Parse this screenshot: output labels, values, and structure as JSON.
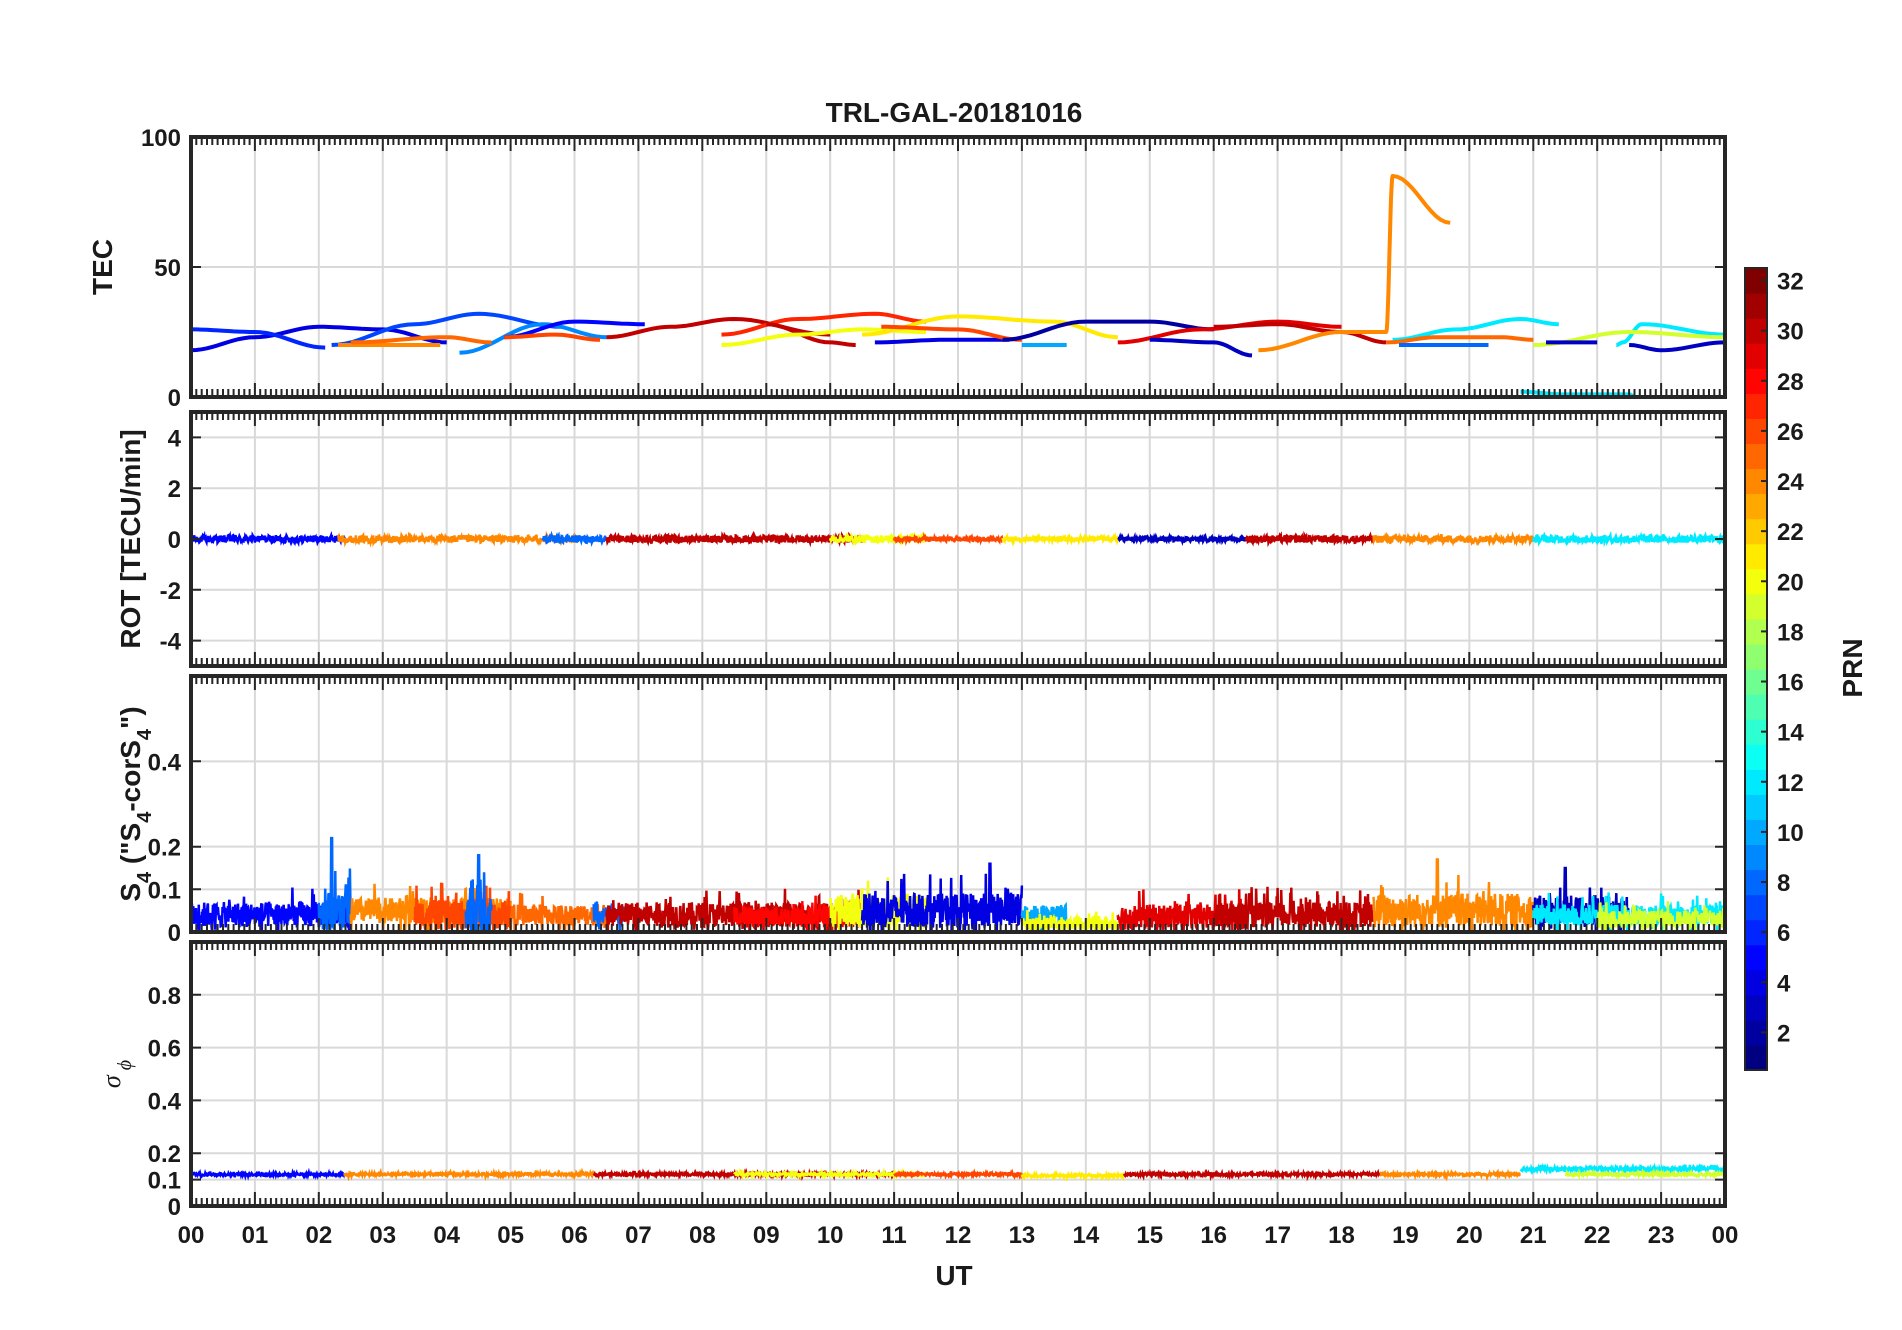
{
  "chart_data": [
    {
      "type": "line",
      "panel": "tec",
      "title": "TRL-GAL-20181016",
      "ylabel": "TEC",
      "ylim": [
        0,
        100
      ],
      "yticks": [
        0,
        50,
        100
      ],
      "ytick_labels": [
        "0",
        "50",
        "100"
      ],
      "grid": true,
      "series": [
        {
          "prn": 4,
          "x": [
            0.0,
            1.0,
            2.0,
            3.0,
            4.0
          ],
          "y": [
            18,
            23,
            27,
            26,
            21
          ]
        },
        {
          "prn": 6,
          "x": [
            0.0,
            1.0,
            2.1
          ],
          "y": [
            26,
            25,
            19
          ]
        },
        {
          "prn": 7,
          "x": [
            2.2,
            3.5,
            4.5,
            5.8
          ],
          "y": [
            20,
            28,
            32,
            27
          ]
        },
        {
          "prn": 9,
          "x": [
            4.2,
            5.5,
            6.5
          ],
          "y": [
            17,
            28,
            23
          ]
        },
        {
          "prn": 5,
          "x": [
            4.9,
            6.0,
            7.1
          ],
          "y": [
            23,
            29,
            28
          ]
        },
        {
          "prn": 24,
          "x": [
            2.3,
            3.2,
            3.9
          ],
          "y": [
            20,
            20,
            20
          ]
        },
        {
          "prn": 25,
          "x": [
            2.5,
            4.0,
            4.7
          ],
          "y": [
            21,
            23,
            21
          ]
        },
        {
          "prn": 26,
          "x": [
            4.9,
            5.7,
            6.4
          ],
          "y": [
            23,
            24,
            22
          ]
        },
        {
          "prn": 30,
          "x": [
            6.5,
            7.5,
            8.5,
            10.0
          ],
          "y": [
            23,
            27,
            30,
            24
          ]
        },
        {
          "prn": 27,
          "x": [
            8.3,
            9.5,
            10.7,
            11.5
          ],
          "y": [
            24,
            30,
            32,
            29
          ]
        },
        {
          "prn": 30,
          "x": [
            9.0,
            10.0,
            10.4
          ],
          "y": [
            28,
            21,
            20
          ]
        },
        {
          "prn": 20,
          "x": [
            8.3,
            9.5,
            10.5,
            11.5
          ],
          "y": [
            20,
            24,
            26,
            25
          ]
        },
        {
          "prn": 21,
          "x": [
            10.5,
            12.0,
            13.5,
            14.5
          ],
          "y": [
            24,
            31,
            29,
            23
          ]
        },
        {
          "prn": 4,
          "x": [
            10.7,
            11.8,
            12.8
          ],
          "y": [
            21,
            22,
            22
          ]
        },
        {
          "prn": 26,
          "x": [
            10.8,
            12.0,
            13.0
          ],
          "y": [
            27,
            26,
            22
          ]
        },
        {
          "prn": 2,
          "x": [
            12.7,
            14.0,
            15.0,
            16.0
          ],
          "y": [
            22,
            29,
            29,
            26
          ]
        },
        {
          "prn": 10,
          "x": [
            13.0,
            13.7
          ],
          "y": [
            20,
            20
          ]
        },
        {
          "prn": 29,
          "x": [
            14.5,
            15.8,
            17.0,
            18.0
          ],
          "y": [
            21,
            26,
            29,
            27
          ]
        },
        {
          "prn": 3,
          "x": [
            15.0,
            16.0,
            16.6
          ],
          "y": [
            22,
            21,
            16
          ]
        },
        {
          "prn": 30,
          "x": [
            16.0,
            17.0,
            18.0,
            18.7
          ],
          "y": [
            27,
            28,
            25,
            21
          ]
        },
        {
          "prn": 24,
          "x": [
            16.7,
            18.0,
            18.7,
            18.8,
            19.7
          ],
          "y": [
            18,
            25,
            25,
            85,
            67
          ]
        },
        {
          "prn": 12,
          "x": [
            18.8,
            19.8,
            20.8,
            21.4
          ],
          "y": [
            22,
            26,
            30,
            28
          ]
        },
        {
          "prn": 25,
          "x": [
            18.7,
            19.5,
            20.5,
            21.0
          ],
          "y": [
            21,
            23,
            23,
            22
          ]
        },
        {
          "prn": 8,
          "x": [
            18.9,
            20.3
          ],
          "y": [
            20,
            20
          ]
        },
        {
          "prn": 12,
          "x": [
            20.8,
            21.5,
            22.5,
            22.6
          ],
          "y": [
            2,
            1,
            1,
            0
          ]
        },
        {
          "prn": 12,
          "x": [
            22.3,
            22.4,
            22.7,
            24.0
          ],
          "y": [
            20,
            21,
            28,
            24
          ]
        },
        {
          "prn": 19,
          "x": [
            21.0,
            22.5,
            24.0
          ],
          "y": [
            20,
            25,
            23
          ]
        },
        {
          "prn": 3,
          "x": [
            21.2,
            22.0
          ],
          "y": [
            21,
            21
          ]
        },
        {
          "prn": 3,
          "x": [
            22.5,
            23.0,
            24.0
          ],
          "y": [
            20,
            18,
            21
          ]
        }
      ]
    },
    {
      "type": "line",
      "panel": "rot",
      "ylabel": "ROT [TECU/min]",
      "ylim": [
        -5,
        5
      ],
      "yticks": [
        -4,
        -2,
        0,
        2,
        4
      ],
      "ytick_labels": [
        "-4",
        "-2",
        "0",
        "2",
        "4"
      ],
      "grid": true,
      "segments": [
        {
          "prn": 5,
          "x0": 0.0,
          "x1": 2.4,
          "amp": 0.15
        },
        {
          "prn": 24,
          "x0": 2.3,
          "x1": 6.0,
          "amp": 0.15
        },
        {
          "prn": 8,
          "x0": 5.5,
          "x1": 6.5,
          "amp": 0.15
        },
        {
          "prn": 30,
          "x0": 6.5,
          "x1": 10.5,
          "amp": 0.15
        },
        {
          "prn": 20,
          "x0": 10.0,
          "x1": 11.5,
          "amp": 0.15
        },
        {
          "prn": 26,
          "x0": 11.0,
          "x1": 12.7,
          "amp": 0.1
        },
        {
          "prn": 21,
          "x0": 12.7,
          "x1": 14.5,
          "amp": 0.1
        },
        {
          "prn": 3,
          "x0": 14.5,
          "x1": 16.5,
          "amp": 0.1
        },
        {
          "prn": 30,
          "x0": 16.5,
          "x1": 18.5,
          "amp": 0.15
        },
        {
          "prn": 24,
          "x0": 18.5,
          "x1": 21.0,
          "amp": 0.15
        },
        {
          "prn": 12,
          "x0": 21.0,
          "x1": 24.0,
          "amp": 0.15
        }
      ]
    },
    {
      "type": "line",
      "panel": "s4",
      "ylim": [
        0,
        0.6
      ],
      "yticks": [
        0,
        0.1,
        0.2,
        0.4
      ],
      "ytick_labels": [
        "0",
        "0.1",
        "0.2",
        "0.4"
      ],
      "grid": true,
      "segments": [
        {
          "prn": 5,
          "x0": 0.0,
          "x1": 2.5,
          "base": 0.04,
          "amp": 0.06
        },
        {
          "prn": 8,
          "x0": 2.0,
          "x1": 2.5,
          "base": 0.05,
          "amp": 0.09,
          "spike": [
            2.2,
            0.22
          ]
        },
        {
          "prn": 24,
          "x0": 2.5,
          "x1": 5.0,
          "base": 0.05,
          "amp": 0.06
        },
        {
          "prn": 26,
          "x0": 3.5,
          "x1": 5.0,
          "base": 0.04,
          "amp": 0.07
        },
        {
          "prn": 8,
          "x0": 4.3,
          "x1": 4.7,
          "base": 0.04,
          "amp": 0.1,
          "spike": [
            4.5,
            0.18
          ]
        },
        {
          "prn": 25,
          "x0": 5.0,
          "x1": 6.5,
          "base": 0.04,
          "amp": 0.05
        },
        {
          "prn": 8,
          "x0": 6.3,
          "x1": 6.8,
          "base": 0.04,
          "amp": 0.04
        },
        {
          "prn": 30,
          "x0": 6.5,
          "x1": 10.5,
          "base": 0.04,
          "amp": 0.06
        },
        {
          "prn": 28,
          "x0": 8.5,
          "x1": 10.5,
          "base": 0.035,
          "amp": 0.05
        },
        {
          "prn": 20,
          "x0": 10.0,
          "x1": 11.5,
          "base": 0.05,
          "amp": 0.08
        },
        {
          "prn": 4,
          "x0": 10.5,
          "x1": 13.0,
          "base": 0.05,
          "amp": 0.08,
          "spike": [
            12.5,
            0.16
          ]
        },
        {
          "prn": 10,
          "x0": 13.0,
          "x1": 13.7,
          "base": 0.04,
          "amp": 0.05
        },
        {
          "prn": 20,
          "x0": 13.0,
          "x1": 14.5,
          "base": 0.02,
          "amp": 0.03
        },
        {
          "prn": 29,
          "x0": 14.5,
          "x1": 16.5,
          "base": 0.035,
          "amp": 0.06
        },
        {
          "prn": 30,
          "x0": 16.0,
          "x1": 18.5,
          "base": 0.04,
          "amp": 0.06
        },
        {
          "prn": 24,
          "x0": 18.5,
          "x1": 21.0,
          "base": 0.05,
          "amp": 0.08,
          "spike": [
            19.5,
            0.17
          ]
        },
        {
          "prn": 3,
          "x0": 21.0,
          "x1": 22.5,
          "base": 0.05,
          "amp": 0.07,
          "spike": [
            21.5,
            0.15
          ]
        },
        {
          "prn": 12,
          "x0": 21.0,
          "x1": 24.0,
          "base": 0.04,
          "amp": 0.05
        },
        {
          "prn": 19,
          "x0": 22.0,
          "x1": 24.0,
          "base": 0.03,
          "amp": 0.04
        }
      ]
    },
    {
      "type": "line",
      "panel": "sigma",
      "ylim": [
        0,
        1
      ],
      "yticks": [
        0,
        0.1,
        0.2,
        0.4,
        0.6,
        0.8
      ],
      "ytick_labels": [
        "0",
        "0.1",
        "0.2",
        "0.4",
        "0.6",
        "0.8"
      ],
      "grid": true,
      "segments": [
        {
          "prn": 5,
          "x0": 0.0,
          "x1": 2.4,
          "base": 0.12,
          "amp": 0.01
        },
        {
          "prn": 24,
          "x0": 2.4,
          "x1": 6.3,
          "base": 0.12,
          "amp": 0.01
        },
        {
          "prn": 30,
          "x0": 6.3,
          "x1": 11.0,
          "base": 0.12,
          "amp": 0.01
        },
        {
          "prn": 20,
          "x0": 8.5,
          "x1": 11.5,
          "base": 0.12,
          "amp": 0.01
        },
        {
          "prn": 26,
          "x0": 11.0,
          "x1": 13.0,
          "base": 0.12,
          "amp": 0.01
        },
        {
          "prn": 21,
          "x0": 13.0,
          "x1": 14.6,
          "base": 0.115,
          "amp": 0.01
        },
        {
          "prn": 30,
          "x0": 14.6,
          "x1": 18.6,
          "base": 0.12,
          "amp": 0.01
        },
        {
          "prn": 24,
          "x0": 18.6,
          "x1": 20.8,
          "base": 0.12,
          "amp": 0.01
        },
        {
          "prn": 12,
          "x0": 20.8,
          "x1": 24.0,
          "base": 0.14,
          "amp": 0.015
        },
        {
          "prn": 19,
          "x0": 21.5,
          "x1": 24.0,
          "base": 0.12,
          "amp": 0.01
        }
      ]
    }
  ],
  "xaxis": {
    "label": "UT",
    "tick_labels": [
      "00",
      "01",
      "02",
      "03",
      "04",
      "05",
      "06",
      "07",
      "08",
      "09",
      "10",
      "11",
      "12",
      "13",
      "14",
      "15",
      "16",
      "17",
      "18",
      "19",
      "20",
      "21",
      "22",
      "23",
      "00"
    ]
  },
  "colorbar": {
    "label": "PRN",
    "range": [
      1,
      32
    ],
    "ticks": [
      2,
      4,
      6,
      8,
      10,
      12,
      14,
      16,
      18,
      20,
      22,
      24,
      26,
      28,
      30,
      32
    ],
    "colormap": "jet"
  }
}
